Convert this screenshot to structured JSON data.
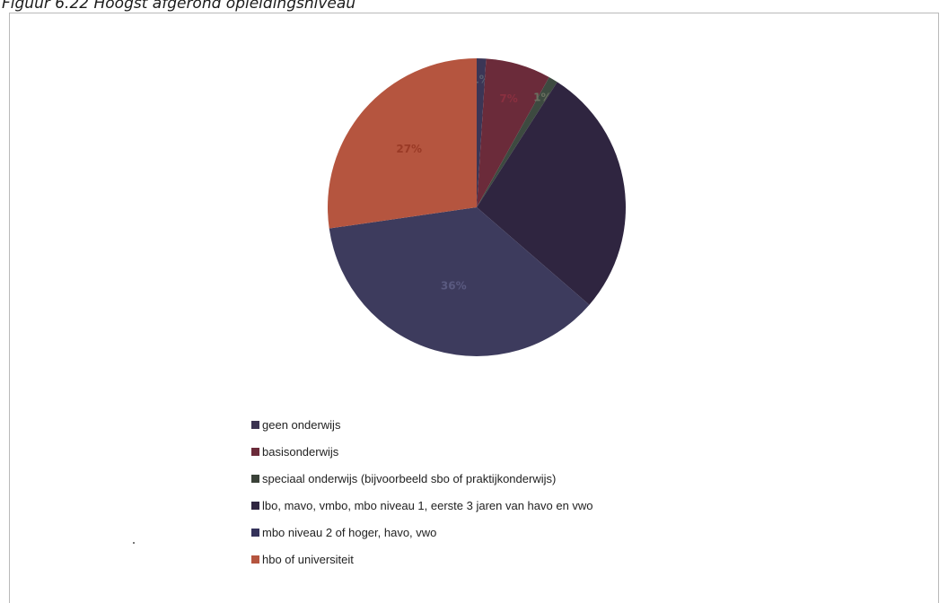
{
  "figure_title": "Figuur 6.22 Hoogst afgerond opleidingsniveau",
  "chart_data": {
    "type": "pie",
    "title": "",
    "categories": [
      "geen onderwijs",
      "basisonderwijs",
      "speciaal onderwijs (bijvoorbeeld sbo of praktijkonderwijs)",
      "lbo, mavo, vmbo, mbo niveau 1, eerste 3 jaren van havo en vwo",
      "mbo niveau 2 of hoger, havo, vwo",
      "hbo of universiteit"
    ],
    "values": [
      1,
      7,
      1,
      27,
      36,
      27
    ],
    "data_labels": [
      "1%",
      "7%",
      "1%",
      "",
      "36%",
      "27%"
    ],
    "colors": [
      "#3b3656",
      "#6b2b3a",
      "#3d4a40",
      "#2f2540",
      "#3d3b5d",
      "#b5553f"
    ],
    "label_colors": [
      "#5a6070",
      "#8a3040",
      "#6a7060",
      "#2f2540",
      "#5a5a80",
      "#9a3a26"
    ],
    "legend_position": "bottom",
    "legend": [
      {
        "label": "geen onderwijs",
        "color": "#3a3350"
      },
      {
        "label": "basisonderwijs",
        "color": "#6b2b3a"
      },
      {
        "label": "speciaal onderwijs (bijvoorbeeld sbo of praktijkonderwijs)",
        "color": "#3a4238"
      },
      {
        "label": "lbo, mavo, vmbo, mbo niveau 1, eerste 3 jaren van havo en vwo",
        "color": "#2f2540"
      },
      {
        "label": "mbo niveau 2 of hoger, havo, vwo",
        "color": "#34325a"
      },
      {
        "label": "hbo of universiteit",
        "color": "#b5553f"
      }
    ]
  }
}
